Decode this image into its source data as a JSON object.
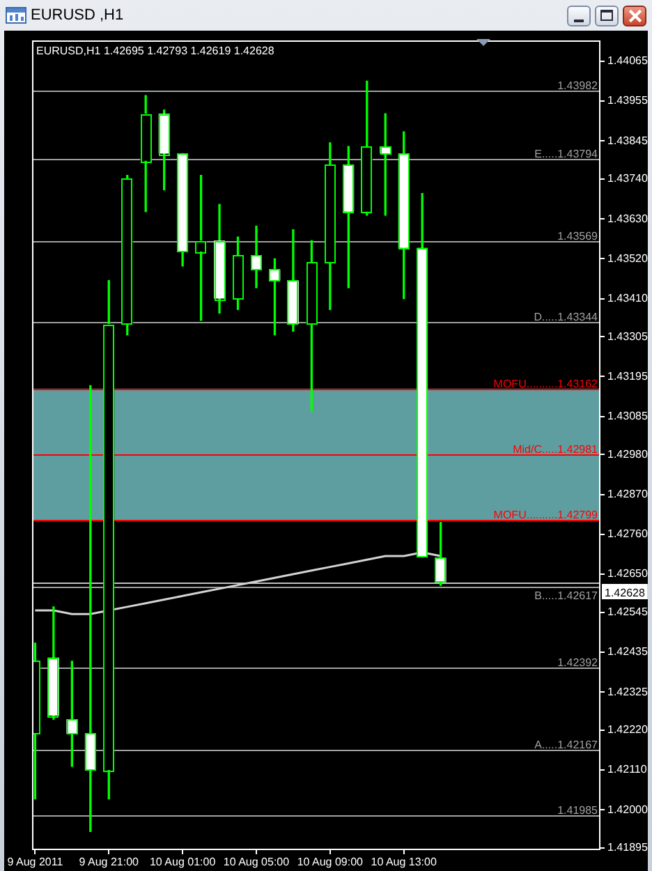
{
  "chart_data": {
    "type": "candlestick",
    "title": "EURUSD ,H1",
    "subtitle": "EURUSD,H1 1.42695 1.42793 1.42619 1.42628",
    "x": [
      "2011-08-09T17:00",
      "2011-08-09T18:00",
      "2011-08-09T19:00",
      "2011-08-09T20:00",
      "2011-08-09T21:00",
      "2011-08-09T22:00",
      "2011-08-09T23:00",
      "2011-08-10T00:00",
      "2011-08-10T01:00",
      "2011-08-10T02:00",
      "2011-08-10T03:00",
      "2011-08-10T04:00",
      "2011-08-10T05:00",
      "2011-08-10T06:00",
      "2011-08-10T07:00",
      "2011-08-10T08:00",
      "2011-08-10T09:00",
      "2011-08-10T10:00",
      "2011-08-10T11:00",
      "2011-08-10T12:00",
      "2011-08-10T13:00",
      "2011-08-10T14:00",
      "2011-08-10T15:00"
    ],
    "series": [
      {
        "color": "#00ff00",
        "colors": [
          "#000000",
          "#ffffff",
          "#ffffff",
          "#ffffff",
          "#000000",
          "#000000",
          "#000000",
          "#ffffff",
          "#ffffff",
          "#000000",
          "#ffffff",
          "#000000",
          "#ffffff",
          "#ffffff",
          "#ffffff",
          "#000000",
          "#000000",
          "#ffffff",
          "#000000",
          "#ffffff",
          "#ffffff",
          "#ffffff",
          "#ffffff"
        ],
        "ohlc": [
          [
            1.4221,
            1.4246,
            1.4203,
            1.4241
          ],
          [
            1.4242,
            1.4256,
            1.4225,
            1.4226
          ],
          [
            1.4225,
            1.4241,
            1.4212,
            1.4221
          ],
          [
            1.4221,
            1.4317,
            1.4194,
            1.4211
          ],
          [
            1.4211,
            1.4346,
            1.4203,
            1.4334
          ],
          [
            1.4334,
            1.4375,
            1.4331,
            1.4374
          ],
          [
            1.4379,
            1.4397,
            1.4365,
            1.4392
          ],
          [
            1.4392,
            1.4393,
            1.4371,
            1.4381
          ],
          [
            1.4381,
            1.4381,
            1.435,
            1.4354
          ],
          [
            1.4354,
            1.4375,
            1.4335,
            1.4357
          ],
          [
            1.4357,
            1.4367,
            1.4337,
            1.4341
          ],
          [
            1.4341,
            1.4358,
            1.4338,
            1.4353
          ],
          [
            1.4353,
            1.4361,
            1.4344,
            1.4349
          ],
          [
            1.4349,
            1.4352,
            1.4331,
            1.4346
          ],
          [
            1.4346,
            1.436,
            1.4332,
            1.4334
          ],
          [
            1.4334,
            1.4357,
            1.431,
            1.4351
          ],
          [
            1.4351,
            1.4384,
            1.4338,
            1.4378
          ],
          [
            1.4378,
            1.4383,
            1.4344,
            1.4365
          ],
          [
            1.4365,
            1.4401,
            1.4364,
            1.4383
          ],
          [
            1.4383,
            1.4392,
            1.4364,
            1.4381
          ],
          [
            1.4381,
            1.4387,
            1.4341,
            1.4355
          ],
          [
            1.4355,
            1.437,
            1.427,
            1.427
          ],
          [
            1.42695,
            1.42793,
            1.42619,
            1.42628
          ]
        ]
      },
      {
        "type": "line",
        "color": "#d3d3d3",
        "values": [
          1.4255,
          1.4255,
          1.4254,
          1.4254,
          1.4255,
          1.4256,
          1.4257,
          1.4258,
          1.4259,
          1.426,
          1.4261,
          1.4262,
          1.4263,
          1.4264,
          1.4265,
          1.4266,
          1.4267,
          1.4268,
          1.4269,
          1.427,
          1.427,
          1.4271,
          1.427
        ]
      }
    ],
    "xlim": [
      "2011-08-09T16:50",
      "2011-08-10T23:40"
    ],
    "xticks": [
      {
        "value": "2011-08-09T17:00",
        "label": "9 Aug 2011"
      },
      {
        "value": "2011-08-09T21:00",
        "label": "9 Aug 21:00"
      },
      {
        "value": "2011-08-10T01:00",
        "label": "10 Aug 01:00"
      },
      {
        "value": "2011-08-10T05:00",
        "label": "10 Aug 05:00"
      },
      {
        "value": "2011-08-10T09:00",
        "label": "10 Aug 09:00"
      },
      {
        "value": "2011-08-10T13:00",
        "label": "10 Aug 13:00"
      }
    ],
    "ylim": [
      1.41889,
      1.44123
    ],
    "yticks": [
      1.44065,
      1.43955,
      1.43845,
      {
        "value": 1.4374,
        "label": "1.43740"
      },
      {
        "value": 1.4363,
        "label": "1.43630"
      },
      {
        "value": 1.4352,
        "label": "1.43520"
      },
      {
        "value": 1.4341,
        "label": "1.43410"
      },
      1.43305,
      1.43195,
      1.43085,
      {
        "value": 1.4298,
        "label": "1.42980"
      },
      {
        "value": 1.4287,
        "label": "1.42870"
      },
      {
        "value": 1.4276,
        "label": "1.42760"
      },
      {
        "value": 1.4265,
        "label": "1.42650"
      },
      1.42545,
      1.42435,
      1.42325,
      {
        "value": 1.4222,
        "label": "1.42220"
      },
      {
        "value": 1.4211,
        "label": "1.42110"
      },
      {
        "value": 1.42,
        "label": "1.42000"
      },
      1.41895
    ],
    "bands": [
      {
        "axis": "y",
        "from": 1.42799,
        "to": 1.43162,
        "color": "#5f9ea0"
      }
    ],
    "ref_lines": [
      {
        "axis": "y",
        "value": 1.43982,
        "label": "1.43982",
        "color": "#a0a0a0"
      },
      {
        "axis": "y",
        "value": 1.43794,
        "label": "E.....1.43794",
        "color": "#a0a0a0"
      },
      {
        "axis": "y",
        "value": 1.43569,
        "label": "1.43569",
        "color": "#a0a0a0"
      },
      {
        "axis": "y",
        "value": 1.43344,
        "label": "D.....1.43344",
        "color": "#a0a0a0"
      },
      {
        "axis": "y",
        "value": 1.43162,
        "label": "MOFU..........1.43162",
        "color": "#ff0000"
      },
      {
        "axis": "y",
        "value": 1.42981,
        "label": "Mid/C.....1.42981",
        "color": "#ff0000"
      },
      {
        "axis": "y",
        "value": 1.42799,
        "label": "MOFU..........1.42799",
        "color": "#ff0000"
      },
      {
        "axis": "y",
        "value": 1.42628,
        "color": "#c0c0c0"
      },
      {
        "axis": "y",
        "value": 1.42617,
        "label": "B.....1.42617",
        "color": "#a0a0a0"
      },
      {
        "axis": "y",
        "value": 1.42392,
        "label": "1.42392",
        "color": "#a0a0a0"
      },
      {
        "axis": "y",
        "value": 1.42167,
        "label": "A.....1.42167",
        "color": "#a0a0a0"
      },
      {
        "axis": "y",
        "value": 1.41985,
        "label": "1.41985",
        "color": "#a0a0a0"
      }
    ],
    "annotations": [
      "1.42628"
    ]
  }
}
